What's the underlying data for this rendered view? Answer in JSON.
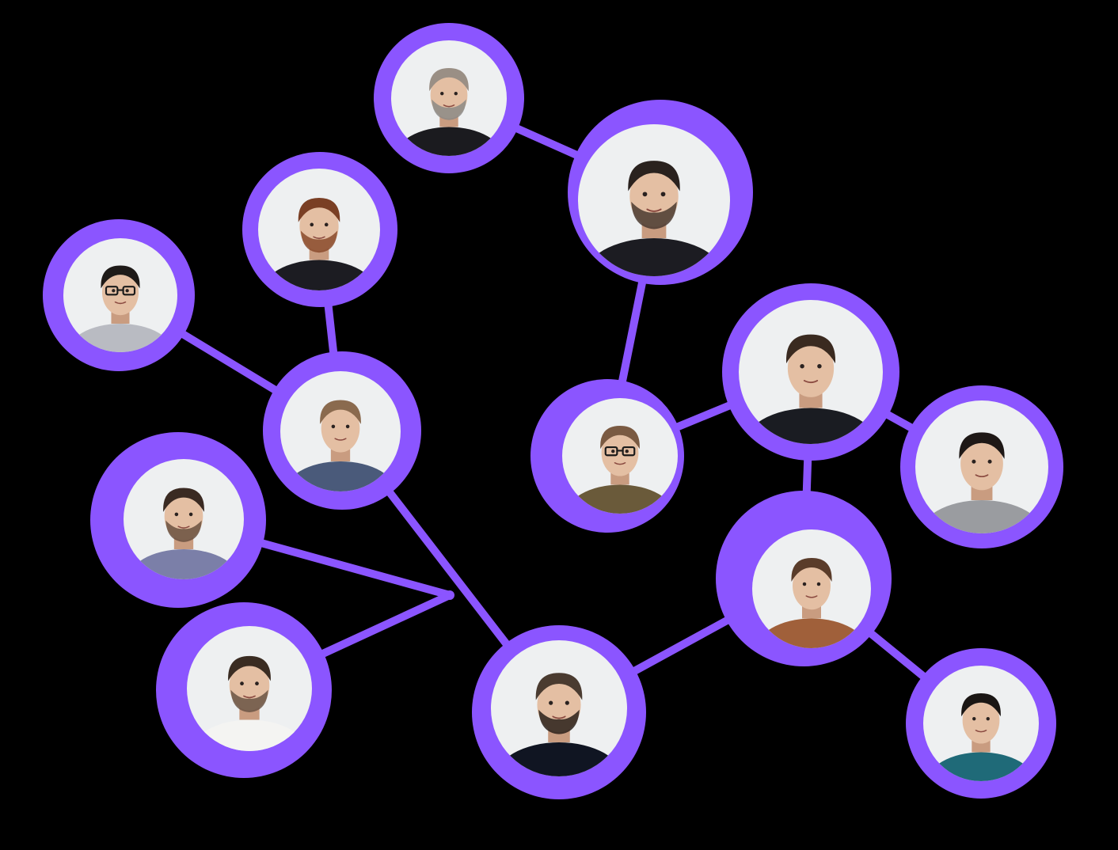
{
  "theme": {
    "background": "#000000",
    "accent": "#8b55ff",
    "photo_background": "#eef0f1",
    "skin": "#e4bfa3",
    "skin_shadow": "#c99c80"
  },
  "people": [
    {
      "id": "p1",
      "hair": "#9a8f85",
      "shirt": "#1b1b1f",
      "beard": "#8c8a86",
      "glasses": false
    },
    {
      "id": "p2",
      "hair": "#2a221e",
      "shirt": "#1c1c22",
      "beard": "#4a3a30",
      "glasses": false
    },
    {
      "id": "p3",
      "hair": "#7a3f24",
      "shirt": "#1c1c22",
      "beard": "#8a4a2c",
      "glasses": false
    },
    {
      "id": "p4",
      "hair": "#1e1a18",
      "shirt": "#b9bbc2",
      "beard": null,
      "glasses": true
    },
    {
      "id": "p5",
      "hair": "#8a6a4e",
      "shirt": "#4a5a7a",
      "beard": null,
      "glasses": false
    },
    {
      "id": "p6",
      "hair": "#3a2a22",
      "shirt": "#7b7fa8",
      "beard": "#6a5040",
      "glasses": false
    },
    {
      "id": "p7",
      "hair": "#3a2c22",
      "shirt": "#f4f4f2",
      "beard": "#6a5444",
      "glasses": false
    },
    {
      "id": "p8",
      "hair": "#4a3b30",
      "shirt": "#101522",
      "beard": "#2a201a",
      "glasses": false
    },
    {
      "id": "p9",
      "hair": "#7a5a42",
      "shirt": "#6a5a3a",
      "beard": null,
      "glasses": true
    },
    {
      "id": "p10",
      "hair": "#3a2a20",
      "shirt": "#1a1c22",
      "beard": null,
      "glasses": false
    },
    {
      "id": "p11",
      "hair": "#1e1816",
      "shirt": "#9a9ca0",
      "beard": null,
      "glasses": false
    },
    {
      "id": "p12",
      "hair": "#5a3c2a",
      "shirt": "#a0603a",
      "beard": null,
      "glasses": false
    },
    {
      "id": "p13",
      "hair": "#1a1614",
      "shirt": "#1f6a78",
      "beard": null,
      "glasses": false
    }
  ],
  "connections": [
    [
      "p1",
      "p2"
    ],
    [
      "p2",
      "p9"
    ],
    [
      "p9",
      "p10"
    ],
    [
      "p10",
      "p11"
    ],
    [
      "p10",
      "p12"
    ],
    [
      "p12",
      "p13"
    ],
    [
      "p12",
      "p8"
    ],
    [
      "p3",
      "p5"
    ],
    [
      "p4",
      "p5"
    ],
    [
      "p5",
      "p8"
    ],
    [
      "p6",
      "junction-a"
    ],
    [
      "p7",
      "junction-a"
    ]
  ]
}
